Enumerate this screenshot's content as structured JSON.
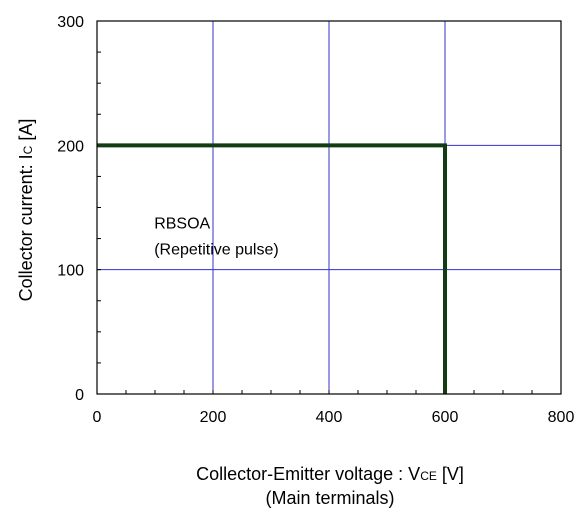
{
  "chart_data": {
    "type": "line",
    "title": "",
    "xlabel": "Collector-Emitter voltage : V",
    "xlabel_sub": "CE",
    "xlabel_unit": " [V]",
    "xlabel_line2": "(Main terminals)",
    "ylabel": "Collector current: I",
    "ylabel_sub": "C",
    "ylabel_unit": " [A]",
    "xlim": [
      0,
      800
    ],
    "ylim": [
      0,
      300
    ],
    "x_ticks": [
      0,
      200,
      400,
      600,
      800
    ],
    "y_ticks": [
      0,
      100,
      200,
      300
    ],
    "x_tick_labels": [
      "0",
      "200",
      "400",
      "600",
      "800"
    ],
    "y_tick_labels": [
      "0",
      "100",
      "200",
      "300"
    ],
    "grid": true,
    "grid_color": "#3333cc",
    "series": [
      {
        "color": "#123d12",
        "x": [
          0,
          600,
          600
        ],
        "y": [
          200,
          200,
          0
        ]
      }
    ],
    "annotations": [
      {
        "text": "RBSOA",
        "x": 90,
        "y": 138
      },
      {
        "text": "(Repetitive pulse)",
        "x": 90,
        "y": 117
      }
    ]
  }
}
